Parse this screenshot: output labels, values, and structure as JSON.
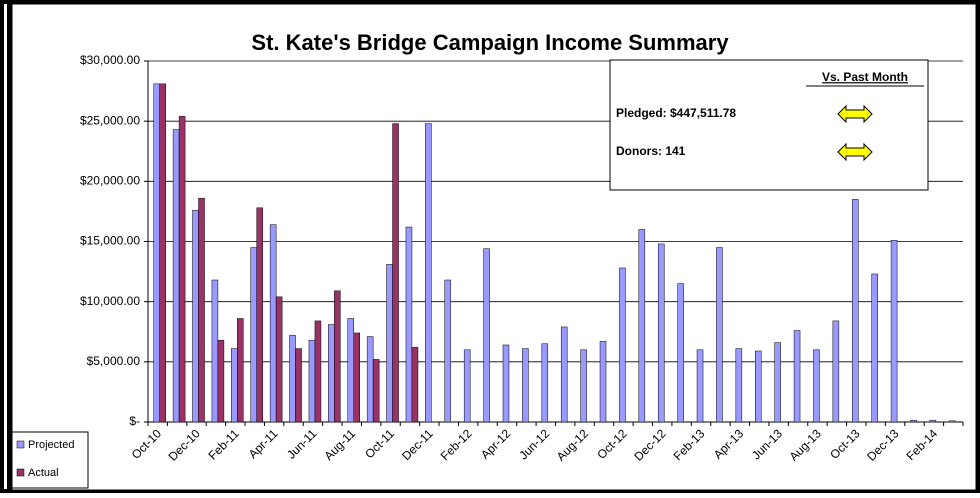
{
  "chart_data": {
    "type": "bar",
    "title": "St. Kate's Bridge Campaign Income Summary",
    "categories": [
      "Oct-10",
      null,
      "Dec-10",
      null,
      "Feb-11",
      null,
      "Apr-11",
      null,
      "Jun-11",
      null,
      "Aug-11",
      null,
      "Oct-11",
      null,
      "Dec-11",
      null,
      "Feb-12",
      null,
      "Apr-12",
      null,
      "Jun-12",
      null,
      "Aug-12",
      null,
      "Oct-12",
      null,
      "Dec-12",
      null,
      "Feb-13",
      null,
      "Apr-13",
      null,
      "Jun-13",
      null,
      "Aug-13",
      null,
      "Oct-13",
      null,
      "Dec-13",
      null,
      "Feb-14",
      null
    ],
    "series": [
      {
        "name": "Projected",
        "color": "#9999ff",
        "values": [
          28100,
          24300,
          17600,
          11800,
          6100,
          14500,
          16400,
          7200,
          6800,
          8100,
          8600,
          7100,
          13100,
          16200,
          24800,
          11800,
          6000,
          14400,
          6400,
          6100,
          6500,
          7900,
          6000,
          6700,
          12800,
          16000,
          14800,
          11500,
          6000,
          14500,
          6100,
          5900,
          6600,
          7600,
          6000,
          8400,
          18500,
          12300,
          15100,
          150,
          150,
          100
        ]
      },
      {
        "name": "Actual",
        "color": "#993366",
        "values": [
          28100,
          25400,
          18600,
          6800,
          8600,
          17800,
          10400,
          6100,
          8400,
          10900,
          7400,
          5200,
          24800,
          6200,
          null,
          null,
          null,
          null,
          null,
          null,
          null,
          null,
          null,
          null,
          null,
          null,
          null,
          null,
          null,
          null,
          null,
          null,
          null,
          null,
          null,
          null,
          null,
          null,
          null,
          null,
          null,
          null
        ]
      }
    ],
    "ylim": [
      0,
      30000
    ],
    "yticks": [
      {
        "value": 0,
        "label": "$-"
      },
      {
        "value": 5000,
        "label": "$5,000.00"
      },
      {
        "value": 10000,
        "label": "$10,000.00"
      },
      {
        "value": 15000,
        "label": "$15,000.00"
      },
      {
        "value": 20000,
        "label": "$20,000.00"
      },
      {
        "value": 25000,
        "label": "$25,000.00"
      },
      {
        "value": 30000,
        "label": "$30,000.00"
      }
    ],
    "grid": true,
    "legend": "bottom-left",
    "info": {
      "heading": "Vs. Past Month",
      "pledged": "Pledged:  $447,511.78",
      "donors": "Donors:  141"
    }
  }
}
